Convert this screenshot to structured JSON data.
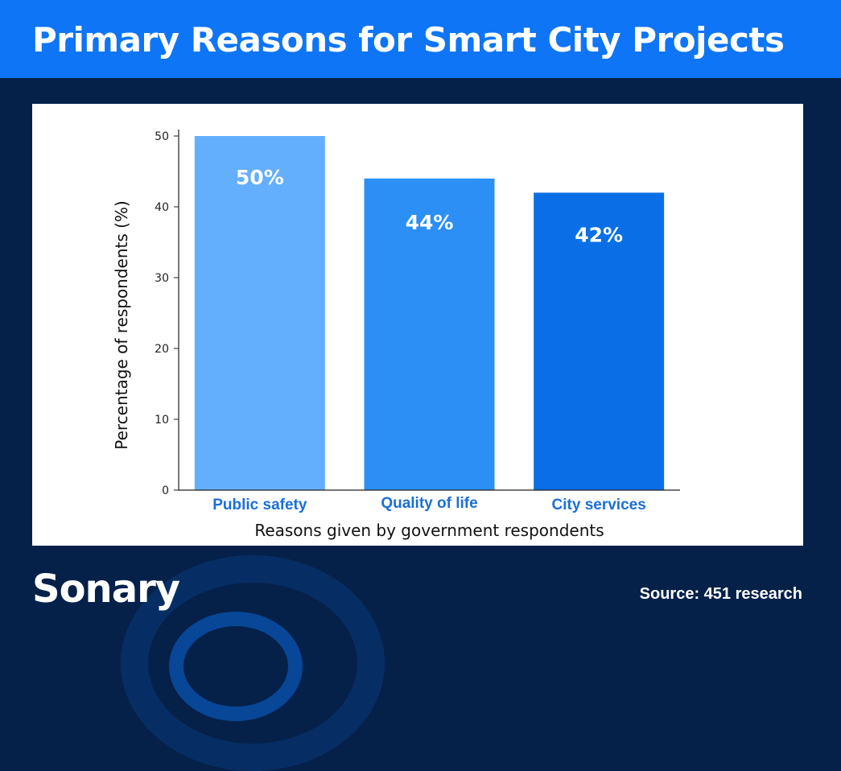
{
  "header": {
    "title": "Primary Reasons for Smart City Projects",
    "background": "#0e75f7"
  },
  "chart_data": {
    "type": "bar",
    "categories": [
      "Public safety",
      "Quality of life",
      "City services"
    ],
    "values": [
      50,
      44,
      42
    ],
    "data_labels": [
      "50%",
      "44%",
      "42%"
    ],
    "bar_colors": [
      "#64affd",
      "#2b8ff6",
      "#0a6fe6"
    ],
    "category_label_color": "#1a6fd8",
    "xlabel": "Reasons given by government respondents",
    "ylabel": "Percentage of respondents (%)",
    "ylim": [
      0,
      50
    ],
    "yticks": [
      0,
      10,
      20,
      30,
      40,
      50
    ],
    "grid": false
  },
  "footer": {
    "logo": "Sonary",
    "source": "Source: 451 research"
  },
  "colors": {
    "page_background": "#05214a",
    "panel_background": "#ffffff"
  }
}
